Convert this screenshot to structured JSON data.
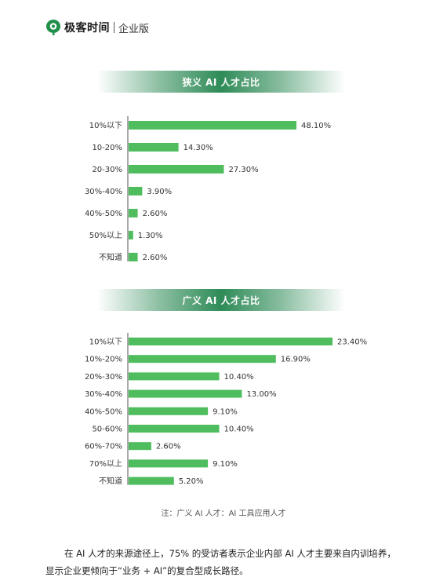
{
  "brand": {
    "name": "极客时间",
    "edition": "企业版",
    "logo_icon": "geek-time-logo-icon"
  },
  "chart_data": [
    {
      "type": "bar",
      "orientation": "horizontal",
      "title": "狭义 AI 人才占比",
      "categories": [
        "10%以下",
        "10-20%",
        "20-30%",
        "30%-40%",
        "40%-50%",
        "50%以上",
        "不知道"
      ],
      "values": [
        48.1,
        14.3,
        27.3,
        3.9,
        2.6,
        1.3,
        2.6
      ],
      "value_labels": [
        "48.10%",
        "14.30%",
        "27.30%",
        "3.90%",
        "2.60%",
        "1.30%",
        "2.60%"
      ],
      "bar_color": "#4fbd5e",
      "xlim": [
        0,
        50
      ]
    },
    {
      "type": "bar",
      "orientation": "horizontal",
      "title": "广义 AI 人才占比",
      "categories": [
        "10%以下",
        "10%-20%",
        "20%-30%",
        "30%-40%",
        "40%-50%",
        "50-60%",
        "60%-70%",
        "70%以上",
        "不知道"
      ],
      "values": [
        23.4,
        16.9,
        10.4,
        13.0,
        9.1,
        10.4,
        2.6,
        9.1,
        5.2
      ],
      "value_labels": [
        "23.40%",
        "16.90%",
        "10.40%",
        "13.00%",
        "9.10%",
        "10.40%",
        "2.60%",
        "9.10%",
        "5.20%"
      ],
      "bar_color": "#4fbd5e",
      "xlim": [
        0,
        25
      ]
    }
  ],
  "note": "注：广义 AI 人才：AI 工具应用人才",
  "body": {
    "line1": "在 AI 人才的来源途径上，75% 的受访者表示企业内部 AI 人才主要来自内训培养，",
    "line2": "显示企业更倾向于“业务 + AI”的复合型成长路径。"
  }
}
